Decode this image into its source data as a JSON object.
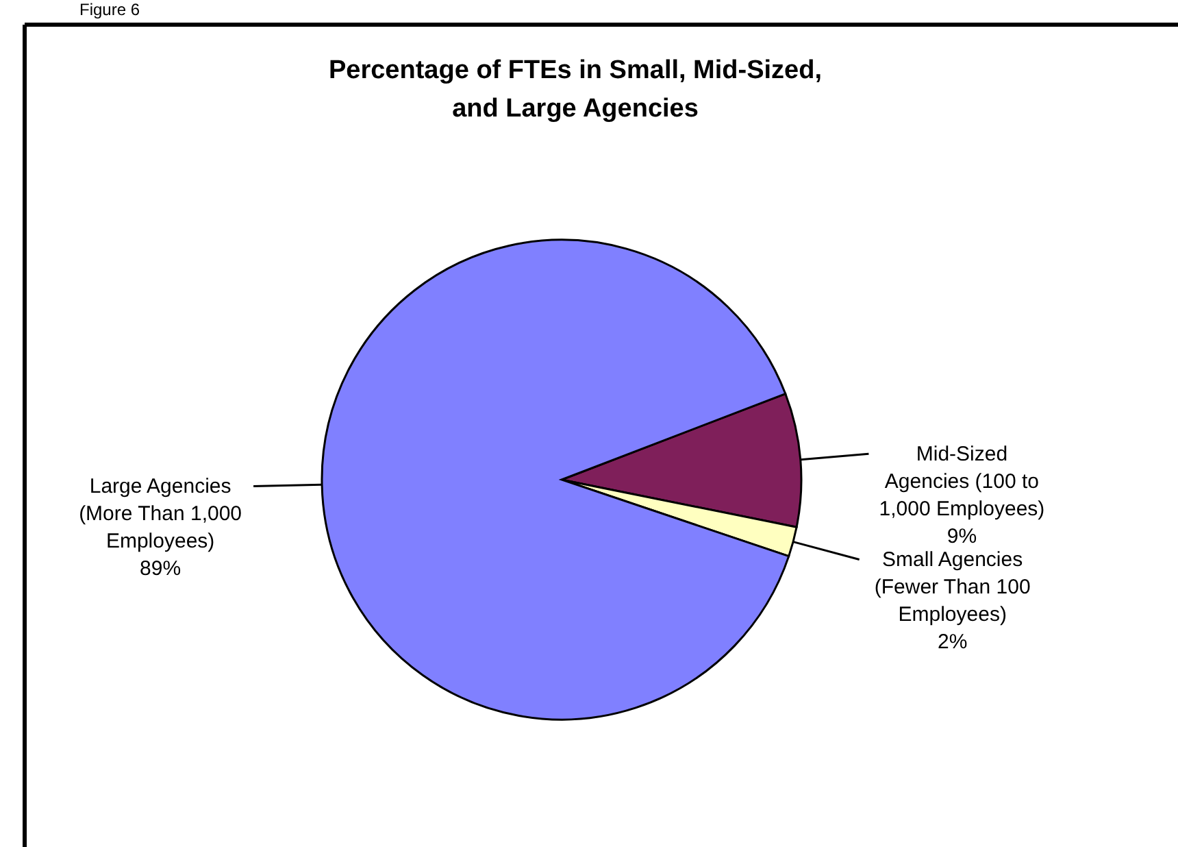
{
  "chart_data": {
    "type": "pie",
    "title": "Percentage of FTEs in Small, Mid-Sized, and Large Agencies",
    "categories": [
      "Mid-Sized Agencies (100 to 1,000 Employees)",
      "Small Agencies (Fewer Than 100 Employees)",
      "Large Agencies (More Than 1,000 Employees)"
    ],
    "values": [
      9,
      2,
      89
    ],
    "colors": [
      "#7f1f5a",
      "#ffffc0",
      "#8080ff"
    ],
    "value_labels": [
      "9%",
      "2%",
      "89%"
    ],
    "annotations": [
      "Figure 6"
    ]
  }
}
